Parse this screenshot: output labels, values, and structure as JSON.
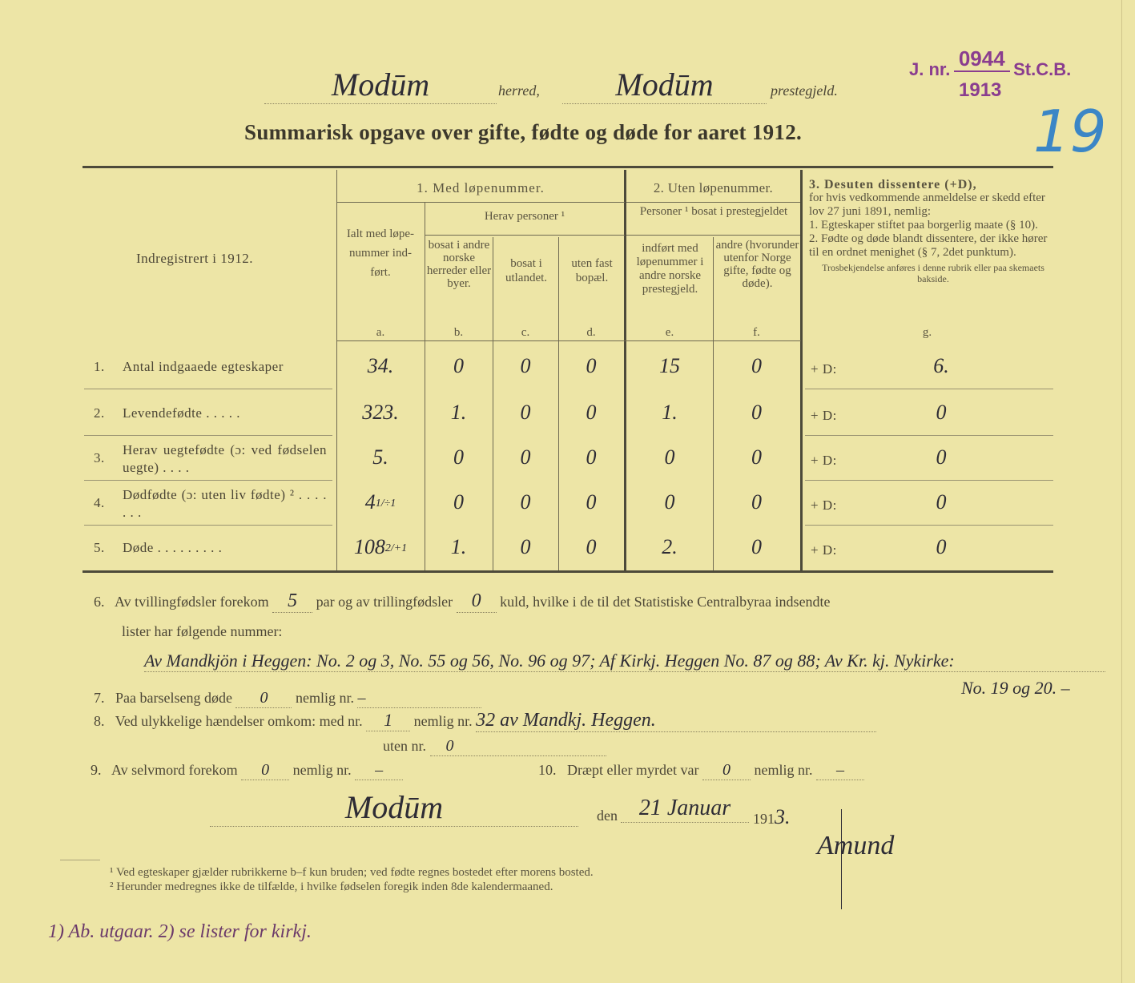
{
  "header": {
    "herred_value": "Modūm",
    "herred_label": "herred,",
    "prestegjeld_value": "Modūm",
    "prestegjeld_label": "prestegjeld.",
    "title": "Summarisk opgave over gifte, fødte og døde for aaret 1912."
  },
  "stamp": {
    "prefix": "J. nr.",
    "number": "0944",
    "suffix": "St.C.B.",
    "year": "1913",
    "color": "#8a3d8f"
  },
  "table": {
    "corner_label": "Indregistrert i 1912.",
    "group1": "1. Med løpenummer.",
    "group2": "2. Uten løpenummer.",
    "herav": "Herav personer ¹",
    "personer": "Personer ¹ bosat i prestegjeldet",
    "columns": {
      "a": "Ialt med løpe-nummer ind-ført.",
      "b": "bosat i andre norske herreder eller byer.",
      "c": "bosat i utlandet.",
      "d": "uten fast bopæl.",
      "e": "indført med løpenummer i andre norske prestegjeld.",
      "f": "andre (hvorunder utenfor Norge gifte, fødte og døde).",
      "g_title": "3. Desuten dissentere (+D),",
      "g_text": "for hvis vedkommende anmeldelse er skedd efter lov 27 juni 1891, nemlig:",
      "g_item1": "1. Egteskaper stiftet paa borgerlig maate (§ 10).",
      "g_item2": "2. Fødte og døde blandt dissentere, der ikke hører til en ordnet menighet (§ 7, 2det punktum).",
      "g_note": "Trosbekjendelse anføres i denne rubrik eller paa skemaets bakside."
    },
    "letters": [
      "a.",
      "b.",
      "c.",
      "d.",
      "e.",
      "f.",
      "g."
    ],
    "rows": [
      {
        "num": "1.",
        "label": "Antal indgaaede egteskaper",
        "a": "34.",
        "a_note": "",
        "b": "0",
        "c": "0",
        "d": "0",
        "e": "15",
        "f": "0",
        "g_prefix": "+ D:",
        "g": "6."
      },
      {
        "num": "2.",
        "label": "Levendefødte . . . . .",
        "a": "323.",
        "a_note": "",
        "b": "1.",
        "c": "0",
        "d": "0",
        "e": "1.",
        "f": "0",
        "g_prefix": "+ D:",
        "g": "0"
      },
      {
        "num": "3.",
        "label": "Herav uegtefødte (ɔ: ved fødselen uegte) . . . .",
        "a": "5.",
        "a_note": "",
        "b": "0",
        "c": "0",
        "d": "0",
        "e": "0",
        "f": "0",
        "g_prefix": "+ D:",
        "g": "0"
      },
      {
        "num": "4.",
        "label": "Dødfødte (ɔ: uten liv fødte) ² . . . . . . .",
        "a": "4",
        "a_note": "1/÷1",
        "b": "0",
        "c": "0",
        "d": "0",
        "e": "0",
        "f": "0",
        "g_prefix": "+ D:",
        "g": "0"
      },
      {
        "num": "5.",
        "label": "Døde . . . . . . . . .",
        "a": "108",
        "a_note": "2/+1",
        "b": "1.",
        "c": "0",
        "d": "0",
        "e": "2.",
        "f": "0",
        "g_prefix": "+ D:",
        "g": "0"
      }
    ],
    "blue_annotation": "19"
  },
  "items": {
    "i6_num": "6.",
    "i6_a": "Av tvillingfødsler forekom",
    "i6_twins": "5",
    "i6_b": "par og av trillingfødsler",
    "i6_triplets": "0",
    "i6_c": "kuld, hvilke i de til det Statistiske Centralbyraa indsendte",
    "i6_d": "lister har følgende nummer:",
    "i6_hand1": "Av Mandkjön i Heggen: No. 2 og 3, No. 55 og 56, No. 96 og 97; Af Kirkj. Heggen No. 87 og 88; Av Kr. kj. Nykirke:",
    "i6_hand2": "No. 19 og 20. –",
    "i7_num": "7.",
    "i7_a": "Paa barselseng døde",
    "i7_val": "0",
    "i7_b": "nemlig nr.",
    "i7_nr": "–",
    "i8_num": "8.",
    "i8_a": "Ved ulykkelige hændelser omkom: med nr.",
    "i8_med": "1",
    "i8_b": "nemlig nr.",
    "i8_nr": "32 av Mandkj. Heggen.",
    "i8_c": "uten nr.",
    "i8_uten": "0",
    "i9_num": "9.",
    "i9_a": "Av selvmord forekom",
    "i9_val": "0",
    "i9_b": "nemlig nr.",
    "i9_nr": "–",
    "i10_num": "10.",
    "i10_a": "Dræpt eller myrdet var",
    "i10_val": "0",
    "i10_b": "nemlig nr.",
    "i10_nr": "–"
  },
  "signature": {
    "place": "Modūm",
    "den": "den",
    "date": "21 Januar",
    "year_prefix": "191",
    "year_suffix": "3.",
    "name": "Amund"
  },
  "footnotes": [
    "¹ Ved egteskaper gjælder rubrikkerne b–f kun bruden; ved fødte regnes bostedet efter morens bosted.",
    "² Herunder medregnes ikke de tilfælde, i hvilke fødselen foregik inden 8de kalendermaaned."
  ],
  "margin_note": "1) Ab. utgaar. 2) se lister for kirkj."
}
